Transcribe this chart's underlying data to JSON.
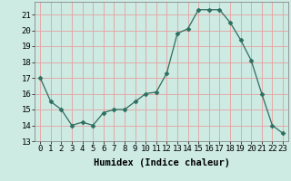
{
  "x": [
    0,
    1,
    2,
    3,
    4,
    5,
    6,
    7,
    8,
    9,
    10,
    11,
    12,
    13,
    14,
    15,
    16,
    17,
    18,
    19,
    20,
    21,
    22,
    23
  ],
  "y": [
    17.0,
    15.5,
    15.0,
    14.0,
    14.2,
    14.0,
    14.8,
    15.0,
    15.0,
    15.5,
    16.0,
    16.1,
    17.3,
    19.8,
    20.1,
    21.3,
    21.3,
    21.3,
    20.5,
    19.4,
    18.1,
    16.0,
    14.0,
    13.5
  ],
  "xlabel": "Humidex (Indice chaleur)",
  "ylim_min": 13,
  "ylim_max": 21.8,
  "yticks": [
    13,
    14,
    15,
    16,
    17,
    18,
    19,
    20,
    21
  ],
  "xticks": [
    0,
    1,
    2,
    3,
    4,
    5,
    6,
    7,
    8,
    9,
    10,
    11,
    12,
    13,
    14,
    15,
    16,
    17,
    18,
    19,
    20,
    21,
    22,
    23
  ],
  "line_color": "#2d6e5e",
  "marker": "D",
  "marker_size": 2.5,
  "bg_color": "#cdeae3",
  "grid_color": "#e8a0a0",
  "tick_label_fontsize": 6.5,
  "xlabel_fontsize": 7.5,
  "xlabel_fontweight": "bold"
}
